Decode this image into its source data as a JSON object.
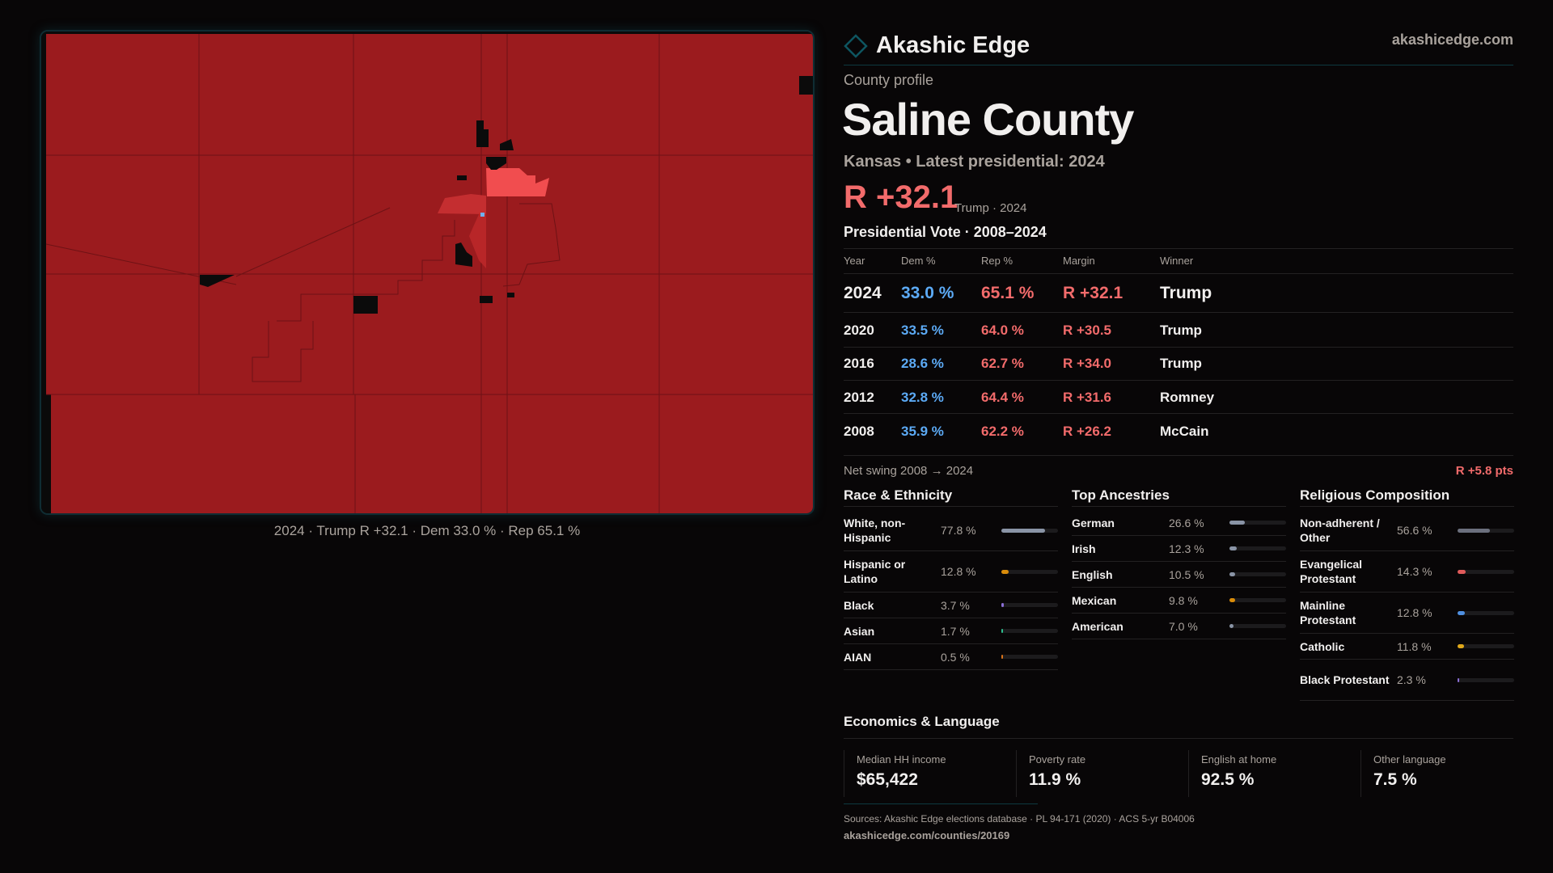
{
  "brand": {
    "name": "Akashic Edge",
    "site": "akashicedge.com",
    "accent": "#0e5560"
  },
  "profile": {
    "kicker": "County profile",
    "title": "Saline County",
    "subtitle": "Kansas • Latest presidential: 2024",
    "margin": "R +32.1",
    "margin_note": "Trump · 2024"
  },
  "map": {
    "caption": "2024 · Trump R +32.1 · Dem 33.0 % · Rep 65.1 %",
    "colors": {
      "rep_strong": "#9b1b1e",
      "rep_mid": "#c42e30",
      "rep_light": "#f14d4f",
      "dem": "#6fb0f0",
      "no_data": "#0b0b0b"
    }
  },
  "votes": {
    "title": "Presidential Vote · 2008–2024",
    "headers": [
      "Year",
      "Dem %",
      "Rep %",
      "Margin",
      "Winner"
    ],
    "rows": [
      [
        "2024",
        "33.0 %",
        "65.1 %",
        "R +32.1",
        "Trump"
      ],
      [
        "2020",
        "33.5 %",
        "64.0 %",
        "R +30.5",
        "Trump"
      ],
      [
        "2016",
        "28.6 %",
        "62.7 %",
        "R +34.0",
        "Trump"
      ],
      [
        "2012",
        "32.8 %",
        "64.4 %",
        "R +31.6",
        "Romney"
      ],
      [
        "2008",
        "35.9 %",
        "62.2 %",
        "R +26.2",
        "McCain"
      ]
    ],
    "swing_label": "Net swing 2008 → 2024",
    "swing_value": "R +5.8 pts"
  },
  "race": {
    "title": "Race & Ethnicity",
    "items": [
      {
        "label": "White, non-Hispanic",
        "value": "77.8 %",
        "pct": 77.8,
        "color": "#8a94a6"
      },
      {
        "label": "Hispanic or Latino",
        "value": "12.8 %",
        "pct": 12.8,
        "color": "#d98c0a"
      },
      {
        "label": "Black",
        "value": "3.7 %",
        "pct": 3.7,
        "color": "#8b6fd6"
      },
      {
        "label": "Asian",
        "value": "1.7 %",
        "pct": 1.7,
        "color": "#2fbf8f"
      },
      {
        "label": "AIAN",
        "value": "0.5 %",
        "pct": 0.5,
        "color": "#d9731a"
      }
    ]
  },
  "ancestry": {
    "title": "Top Ancestries",
    "items": [
      {
        "label": "German",
        "value": "26.6 %",
        "pct": 26.6,
        "color": "#8a94a6"
      },
      {
        "label": "Irish",
        "value": "12.3 %",
        "pct": 12.3,
        "color": "#8a94a6"
      },
      {
        "label": "English",
        "value": "10.5 %",
        "pct": 10.5,
        "color": "#8a94a6"
      },
      {
        "label": "Mexican",
        "value": "9.8 %",
        "pct": 9.8,
        "color": "#d98c0a"
      },
      {
        "label": "American",
        "value": "7.0 %",
        "pct": 7.0,
        "color": "#8a94a6"
      }
    ]
  },
  "religion": {
    "title": "Religious Composition",
    "items": [
      {
        "label": "Non-adherent / Other",
        "value": "56.6 %",
        "pct": 56.6,
        "color": "#6b6f7d"
      },
      {
        "label": "Evangelical Protestant",
        "value": "14.3 %",
        "pct": 14.3,
        "color": "#e05a5a"
      },
      {
        "label": "Mainline Protestant",
        "value": "12.8 %",
        "pct": 12.8,
        "color": "#4f8fe0"
      },
      {
        "label": "Catholic",
        "value": "11.8 %",
        "pct": 11.8,
        "color": "#e0a81a"
      },
      {
        "label": "Black Protestant",
        "value": "2.3 %",
        "pct": 2.3,
        "color": "#8b6fd6"
      }
    ]
  },
  "economics": {
    "title": "Economics & Language",
    "stats": [
      {
        "label": "Median HH income",
        "value": "$65,422"
      },
      {
        "label": "Poverty rate",
        "value": "11.9 %"
      },
      {
        "label": "English at home",
        "value": "92.5 %"
      },
      {
        "label": "Other language",
        "value": "7.5 %"
      }
    ]
  },
  "footer": {
    "sources": "Sources: Akashic Edge elections database · PL 94-171 (2020) · ACS 5-yr B04006",
    "url": "akashicedge.com/counties/20169"
  }
}
